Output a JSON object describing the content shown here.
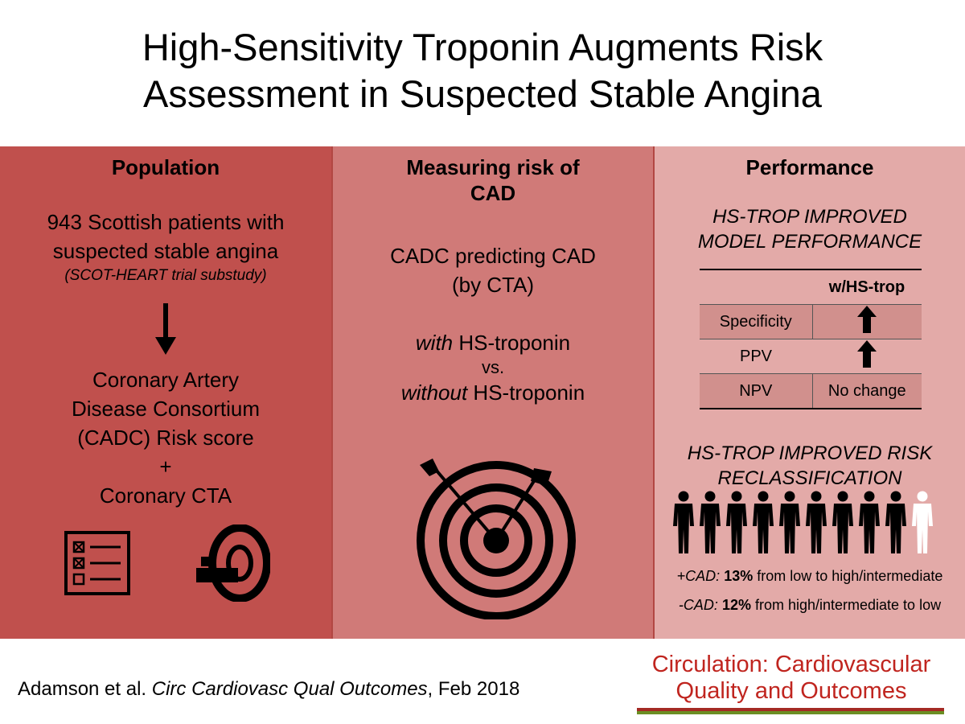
{
  "title": {
    "line1": "High-Sensitivity Troponin Augments Risk",
    "line2": "Assessment in Suspected Stable Angina"
  },
  "population": {
    "heading": "Population",
    "line1": "943 Scottish patients with",
    "line2": "suspected stable angina",
    "note": "(SCOT-HEART trial substudy)",
    "score_line1": "Coronary Artery",
    "score_line2": "Disease Consortium",
    "score_line3": "(CADC) Risk score",
    "plus": "+",
    "cta": "Coronary CTA",
    "icons": [
      "checklist-icon",
      "ct-scanner-icon"
    ]
  },
  "measuring": {
    "heading_line1": "Measuring risk of",
    "heading_line2": "CAD",
    "line1": "CADC predicting CAD",
    "line2": "(by CTA)",
    "with_word": "with",
    "with_rest": " HS-troponin",
    "vs": "vs.",
    "without_word": "without",
    "without_rest": " HS-troponin",
    "icon": "target-icon"
  },
  "performance": {
    "heading": "Performance",
    "sub1_line1": "HS-TROP IMPROVED",
    "sub1_line2": "MODEL PERFORMANCE",
    "table_header": "w/HS-trop",
    "rows": [
      {
        "label": "Specificity",
        "value": "up-arrow"
      },
      {
        "label": "PPV",
        "value": "up-arrow"
      },
      {
        "label": "NPV",
        "value": "No change"
      }
    ],
    "sub2_line1": "HS-TROP IMPROVED RISK",
    "sub2_line2": "RECLASSIFICATION",
    "people_dark_count": 9,
    "people_light_count": 1,
    "stat1_label": "+CAD:",
    "stat1_pct": "13%",
    "stat1_rest": " from low to high/intermediate",
    "stat2_label": "-CAD:",
    "stat2_pct": "12%",
    "stat2_rest": " from high/intermediate to low"
  },
  "footer": {
    "author": "Adamson et al. ",
    "journal_abbrev": "Circ Cardiovasc Qual Outcomes",
    "date": ", Feb 2018",
    "journal_line1": "Circulation: Cardiovascular",
    "journal_line2": "Quality and Outcomes"
  },
  "colors": {
    "panel1": "#c0504d",
    "panel2": "#d07a78",
    "panel3": "#e3aaa8",
    "journal_red": "#c0251f",
    "journal_green": "#6b8e23"
  }
}
